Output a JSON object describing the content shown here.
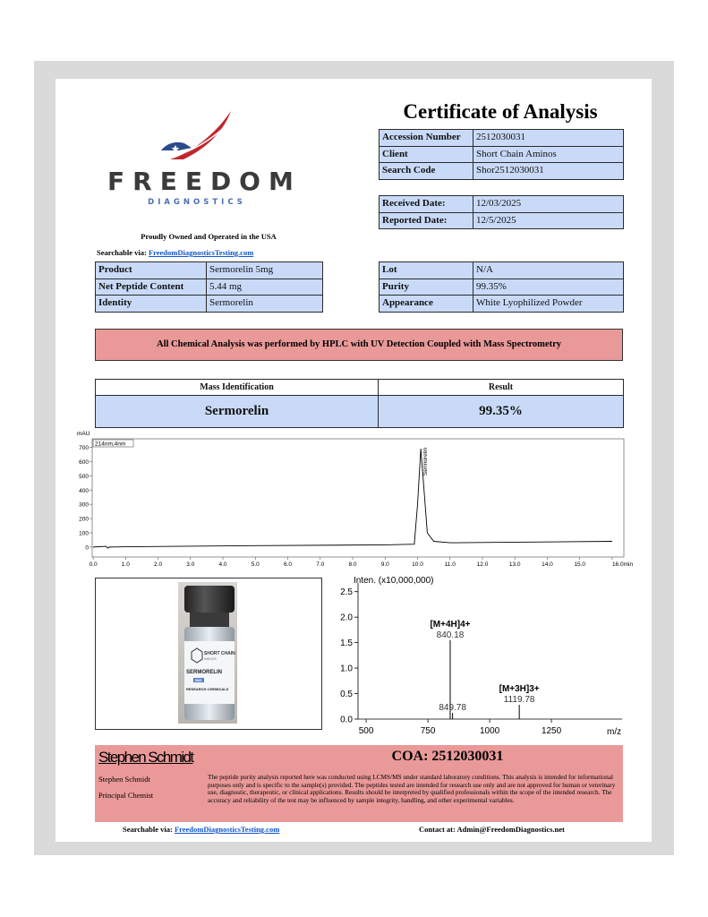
{
  "logo": {
    "brand": "FREEDOM",
    "sub": "DIAGNOSTICS",
    "tagline": "Proudly Owned and Operated in the USA"
  },
  "title": "Certificate of Analysis",
  "sample_table": {
    "rows": [
      [
        "Accession Number",
        "2512030031"
      ],
      [
        "Client",
        "Short Chain Aminos"
      ],
      [
        "Search Code",
        "Shor2512030031"
      ]
    ]
  },
  "dates_table": {
    "rows": [
      [
        "Received Date:",
        "12/03/2025"
      ],
      [
        "Reported Date:",
        "12/5/2025"
      ]
    ]
  },
  "search": {
    "label": "Searchable via:",
    "link": "FreedomDiagnosticsTesting.com"
  },
  "product_table": {
    "rows": [
      [
        "Product",
        "Sermorelin 5mg"
      ],
      [
        "Net Peptide Content",
        "5.44 mg"
      ],
      [
        "Identity",
        "Sermorelin"
      ]
    ]
  },
  "lot_table": {
    "rows": [
      [
        "Lot",
        "N/A"
      ],
      [
        "Purity",
        "99.35%"
      ],
      [
        "Appearance",
        "White Lyophilized Powder"
      ]
    ]
  },
  "method_banner": "All Chemical Analysis was performed by HPLC with UV Detection Coupled with Mass Spectrometry",
  "results_table": {
    "headers": [
      "Mass Identification",
      "Result"
    ],
    "row": [
      "Sermorelin",
      "99.35%"
    ]
  },
  "chart_data": [
    {
      "type": "line",
      "y_label": "mAU",
      "annotation": "214nm,4nm",
      "peak_label": "Sermorelin",
      "color": "#000000",
      "x": [
        0,
        0.4,
        0.45,
        0.5,
        1,
        5,
        9,
        9.9,
        10.0,
        10.1,
        10.2,
        10.3,
        10.5,
        11,
        16
      ],
      "values": [
        0,
        5,
        -8,
        0,
        2,
        10,
        15,
        20,
        300,
        690,
        400,
        100,
        40,
        30,
        40
      ],
      "xlim": [
        -0.03,
        16.36
      ],
      "ylim": [
        -70,
        760
      ],
      "xticks": [
        {
          "value": 0,
          "label": "0.0"
        },
        {
          "value": 1,
          "label": "1.0"
        },
        {
          "value": 2,
          "label": "2.0"
        },
        {
          "value": 3,
          "label": "3.0"
        },
        {
          "value": 4,
          "label": "4.0"
        },
        {
          "value": 5,
          "label": "5.0"
        },
        {
          "value": 6,
          "label": "6.0"
        },
        {
          "value": 7,
          "label": "7.0"
        },
        {
          "value": 8,
          "label": "8.0"
        },
        {
          "value": 9,
          "label": "9.0"
        },
        {
          "value": 10,
          "label": "10.0"
        },
        {
          "value": 11,
          "label": "11.0"
        },
        {
          "value": 12,
          "label": "12.0"
        },
        {
          "value": 13,
          "label": "13.0"
        },
        {
          "value": 14,
          "label": "14.0"
        },
        {
          "value": 15,
          "label": "15.0"
        },
        {
          "value": 16,
          "label": "16.0min"
        }
      ],
      "yticks": [
        0,
        100,
        200,
        300,
        400,
        500,
        600,
        700
      ]
    },
    {
      "type": "stem",
      "y_label": "Inten. (x10,000,000)",
      "x_label": "m/z",
      "color": "#000000",
      "x": [
        840.18,
        849.78,
        1119.78
      ],
      "values": [
        1.55,
        0.12,
        0.28
      ],
      "peak_labels": [
        {
          "ion": "[M+4H]4+",
          "mz": "840.18"
        },
        {
          "ion": null,
          "mz": "849.78"
        },
        {
          "ion": "[M+3H]3+",
          "mz": "1119.78"
        }
      ],
      "xlim": [
        467,
        1536
      ],
      "ylim": [
        0,
        2.6
      ],
      "xticks": [
        500,
        750,
        1000,
        1250
      ],
      "yticks": [
        {
          "value": 0,
          "label": "0.0"
        },
        0.5,
        {
          "value": 1,
          "label": "1.0"
        },
        1.5,
        {
          "value": 2,
          "label": "2.0"
        },
        2.5
      ]
    }
  ],
  "vial_label": {
    "brand": "SHORT CHAIN",
    "brand_sub": "AMINOS",
    "dose": "5MG",
    "name": "SERMORELIN",
    "use": "RESEARCH CHEMICALS"
  },
  "signature": {
    "signature": "Stephen Schmidt",
    "coa": "COA: 2512030031",
    "name": "Stephen Schmidt",
    "role": "Principal Chemist",
    "disclaimer": "The peptide purity analysis reported here was conducted using LCMS/MS under standard laboratory conditions. This analysis is intended for informational purposes only and is specific to the sample(s) provided. The peptides tested are intended for research use only and are not approved for human or veterinary use, diagnostic, therapeutic, or clinical applications. Results should be interpreted by qualified professionals within the scope of the intended research. The accuracy and reliability of the test may be influenced by sample integrity, handling, and other experimental variables."
  },
  "footer": {
    "search_label": "Searchable via:",
    "search_link": "FreedomDiagnosticsTesting.com",
    "contact": "Contact at: Admin@FreedomDiagnostics.net"
  }
}
